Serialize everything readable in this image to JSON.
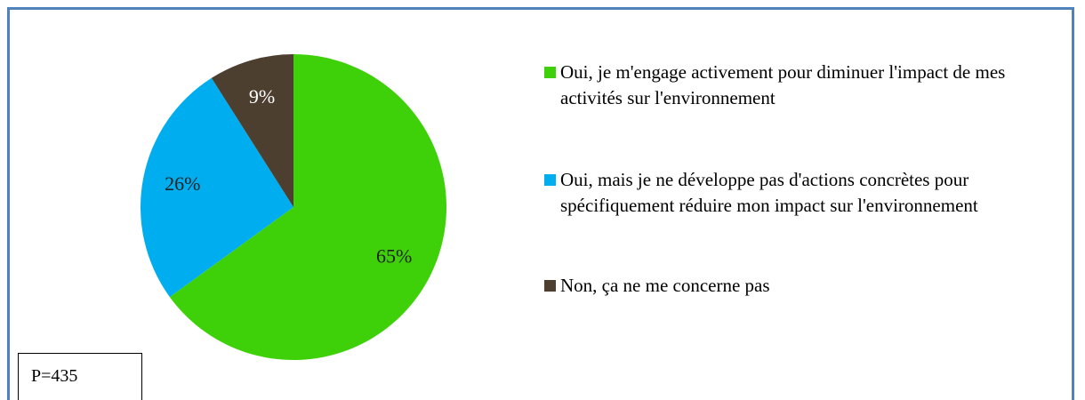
{
  "chart_data": {
    "type": "pie",
    "categories": [
      "Oui, je m'engage activement pour diminuer l'impact de mes activités sur l'environnement",
      "Oui, mais je ne développe pas d'actions concrètes pour spécifiquement réduire mon impact sur l'environnement",
      "Non, ça ne me concerne pas"
    ],
    "values": [
      65,
      26,
      9
    ],
    "value_labels": [
      "65%",
      "26%",
      "9%"
    ],
    "colors": [
      "#3ed10a",
      "#00aeef",
      "#4d3f2f"
    ],
    "legend": "right",
    "annotation": "P=435"
  }
}
